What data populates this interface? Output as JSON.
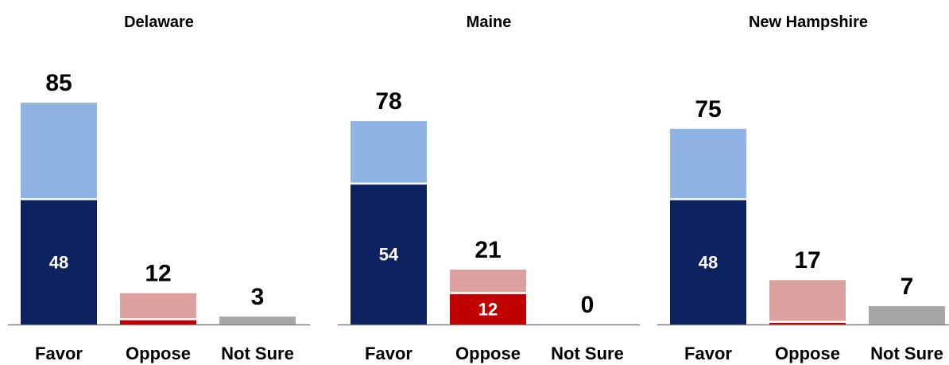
{
  "chart_data": [
    {
      "type": "bar",
      "title": "Delaware",
      "categories": [
        "Favor",
        "Oppose",
        "Not Sure"
      ],
      "totals": [
        85,
        12,
        3
      ],
      "strong": [
        48,
        2,
        null
      ],
      "ylim": [
        0,
        100
      ]
    },
    {
      "type": "bar",
      "title": "Maine",
      "categories": [
        "Favor",
        "Oppose",
        "Not Sure"
      ],
      "totals": [
        78,
        21,
        0
      ],
      "strong": [
        54,
        12,
        null
      ],
      "ylim": [
        0,
        100
      ]
    },
    {
      "type": "bar",
      "title": "New Hampshire",
      "categories": [
        "Favor",
        "Oppose",
        "Not Sure"
      ],
      "totals": [
        75,
        17,
        7
      ],
      "strong": [
        48,
        1,
        null
      ],
      "ylim": [
        0,
        100
      ]
    }
  ],
  "colors": {
    "favor_strong": "#0d235f",
    "favor_total": "#8fb3e2",
    "oppose_strong": "#c00000",
    "oppose_total": "#dca09e",
    "not_sure": "#a6a6a6",
    "axis": "#7f7f7f"
  },
  "show_inner_labels": [
    [
      true,
      false,
      false
    ],
    [
      true,
      true,
      false
    ],
    [
      true,
      false,
      false
    ]
  ]
}
